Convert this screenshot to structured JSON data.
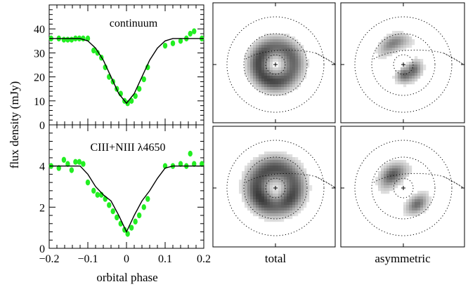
{
  "chart_data": [
    {
      "type": "scatter",
      "panel": "top-left",
      "annotation": "continuum",
      "ylabel": "flux density (mJy)",
      "xlim": [
        -0.2,
        0.2
      ],
      "ylim": [
        0,
        50
      ],
      "yticks": [
        0,
        10,
        20,
        30,
        40
      ],
      "series": [
        {
          "style": "points",
          "color": "#22ee22",
          "x": [
            -0.195,
            -0.175,
            -0.162,
            -0.152,
            -0.142,
            -0.132,
            -0.122,
            -0.112,
            -0.1,
            -0.085,
            -0.075,
            -0.065,
            -0.055,
            -0.045,
            -0.035,
            -0.025,
            -0.015,
            -0.005,
            0.003,
            0.013,
            0.023,
            0.033,
            0.045,
            0.055,
            0.1,
            0.12,
            0.14,
            0.155,
            0.165,
            0.175,
            0.195
          ],
          "y": [
            36,
            36,
            35.5,
            35.5,
            35.5,
            36,
            36,
            36,
            36,
            31,
            30,
            28,
            24,
            20,
            18,
            15,
            13,
            10,
            9,
            10,
            12,
            15,
            19,
            24,
            33,
            34,
            35,
            36,
            38,
            39,
            36
          ]
        },
        {
          "style": "line",
          "color": "#000000",
          "x": [
            -0.2,
            -0.12,
            -0.1,
            -0.08,
            -0.06,
            -0.04,
            -0.02,
            0,
            0.02,
            0.04,
            0.06,
            0.08,
            0.1,
            0.12,
            0.2
          ],
          "y": [
            36,
            36,
            35,
            32,
            27,
            20,
            13,
            9,
            13,
            20,
            27,
            32,
            35,
            36,
            36
          ]
        }
      ]
    },
    {
      "type": "scatter",
      "panel": "bottom-left",
      "annotation": "CIII+NIII  λ4650",
      "xlabel": "orbital phase",
      "xlim": [
        -0.2,
        0.2
      ],
      "ylim": [
        0,
        6
      ],
      "xticks": [
        "−0.2",
        "−0.1",
        "0",
        "0.1",
        "0.2"
      ],
      "yticks": [
        0,
        2,
        4
      ],
      "series": [
        {
          "style": "points",
          "color": "#22ee22",
          "x": [
            -0.195,
            -0.175,
            -0.162,
            -0.152,
            -0.142,
            -0.132,
            -0.122,
            -0.112,
            -0.1,
            -0.085,
            -0.075,
            -0.065,
            -0.055,
            -0.045,
            -0.035,
            -0.025,
            -0.015,
            -0.005,
            0.003,
            0.013,
            0.023,
            0.033,
            0.045,
            0.055,
            0.1,
            0.12,
            0.14,
            0.155,
            0.165,
            0.175,
            0.195
          ],
          "y": [
            4.0,
            3.9,
            4.3,
            4.1,
            3.8,
            4.2,
            4.2,
            4.1,
            3.2,
            2.8,
            2.6,
            2.6,
            2.4,
            2.1,
            1.8,
            1.5,
            1.2,
            0.9,
            0.7,
            1.0,
            1.3,
            1.6,
            2.0,
            2.4,
            4.0,
            4.0,
            4.1,
            4.0,
            4.6,
            4.1,
            4.1
          ]
        },
        {
          "style": "line",
          "color": "#000000",
          "x": [
            -0.2,
            -0.12,
            -0.1,
            -0.08,
            -0.06,
            -0.04,
            -0.02,
            0,
            0.02,
            0.04,
            0.06,
            0.08,
            0.1,
            0.12,
            0.2
          ],
          "y": [
            4.0,
            4.0,
            3.6,
            3.0,
            2.6,
            2.3,
            1.6,
            0.8,
            1.6,
            2.3,
            2.8,
            3.4,
            3.9,
            4.0,
            4.0
          ]
        }
      ]
    },
    {
      "type": "heatmap",
      "panel": "top-middle",
      "blobs": [
        {
          "angle": 30,
          "r": 0.32,
          "ang_width": 110,
          "r_width": 0.14,
          "strength": 0.7
        },
        {
          "angle": 150,
          "r": 0.3,
          "ang_width": 100,
          "r_width": 0.13,
          "strength": 0.75
        },
        {
          "angle": 260,
          "r": 0.3,
          "ang_width": 110,
          "r_width": 0.13,
          "strength": 0.85
        }
      ]
    },
    {
      "type": "heatmap",
      "panel": "top-right",
      "label": "",
      "blobs": [
        {
          "angle": 115,
          "r": 0.42,
          "ang_width": 55,
          "r_width": 0.1,
          "strength": 0.65
        },
        {
          "angle": 335,
          "r": 0.2,
          "ang_width": 60,
          "r_width": 0.1,
          "strength": 0.75
        },
        {
          "angle": 270,
          "r": 0.18,
          "ang_width": 50,
          "r_width": 0.1,
          "strength": 0.7
        }
      ]
    },
    {
      "type": "heatmap",
      "panel": "bottom-middle",
      "label": "total",
      "blobs": [
        {
          "angle": 100,
          "r": 0.34,
          "ang_width": 150,
          "r_width": 0.16,
          "strength": 0.9
        },
        {
          "angle": 220,
          "r": 0.32,
          "ang_width": 80,
          "r_width": 0.14,
          "strength": 0.7
        },
        {
          "angle": 320,
          "r": 0.32,
          "ang_width": 90,
          "r_width": 0.14,
          "strength": 0.75
        }
      ]
    },
    {
      "type": "heatmap",
      "panel": "bottom-right",
      "label": "asymmetric",
      "blobs": [
        {
          "angle": 130,
          "r": 0.3,
          "ang_width": 70,
          "r_width": 0.12,
          "strength": 0.85
        },
        {
          "angle": 310,
          "r": 0.38,
          "ang_width": 45,
          "r_width": 0.1,
          "strength": 0.75
        }
      ]
    }
  ]
}
